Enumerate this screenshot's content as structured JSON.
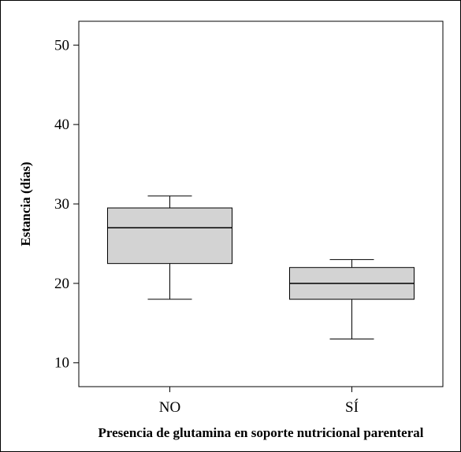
{
  "chart_data": {
    "type": "boxplot",
    "title": "",
    "xlabel": "Presencia de glutamina en soporte nutricional parenteral",
    "ylabel": "Estancia (días)",
    "categories": [
      "NO",
      "SÍ"
    ],
    "ylim": [
      7,
      53
    ],
    "yticks": [
      10,
      20,
      30,
      40,
      50
    ],
    "ytick_labels": [
      "10",
      "20",
      "30",
      "40",
      "50"
    ],
    "boxes": [
      {
        "category": "NO",
        "whisker_low": 18,
        "q1": 22.5,
        "median": 27,
        "q3": 29.5,
        "whisker_high": 31
      },
      {
        "category": "SÍ",
        "whisker_low": 13,
        "q1": 18,
        "median": 20,
        "q3": 22,
        "whisker_high": 23
      }
    ],
    "grid": false,
    "colors": {
      "box_fill": "#d3d3d3",
      "line": "#000000"
    }
  }
}
